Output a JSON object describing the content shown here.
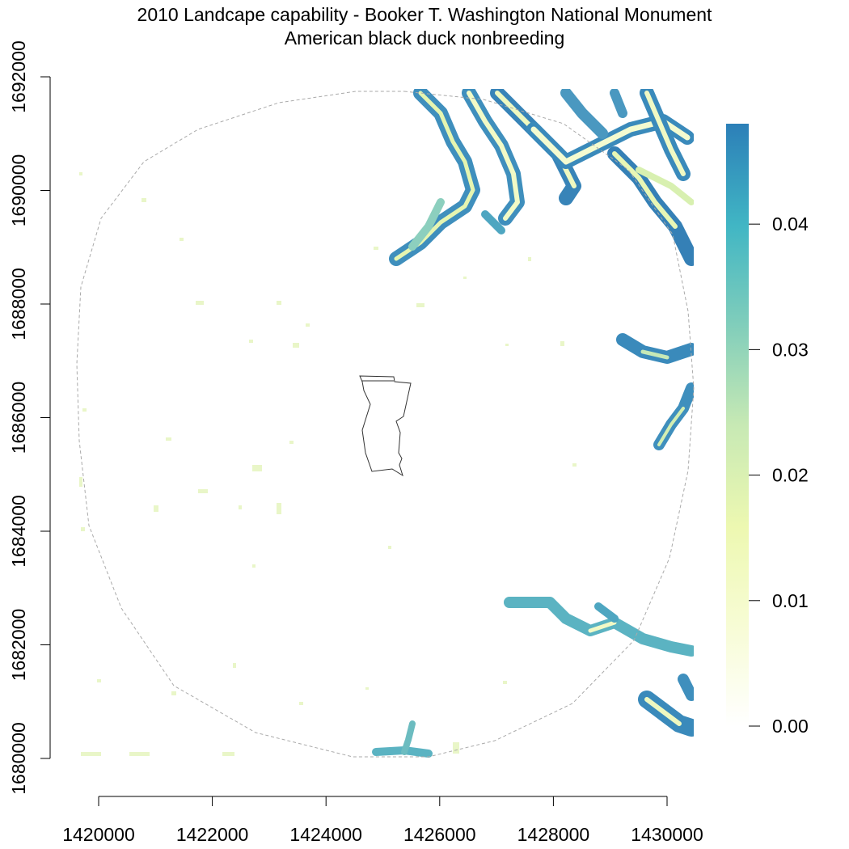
{
  "figure": {
    "title_line1": "2010 Landcape capability - Booker T. Washington National Monument",
    "title_line2": "American black duck nonbreeding"
  },
  "map": {
    "x_ticks": [
      "1420000",
      "1422000",
      "1424000",
      "1426000",
      "1428000",
      "1430000"
    ],
    "y_ticks": [
      "1680000",
      "1682000",
      "1684000",
      "1686000",
      "1688000",
      "1690000",
      "1692000"
    ],
    "buffer_outline_color": "#aaaaaa",
    "park_boundary_color": "#333333"
  },
  "legend": {
    "ticks": [
      "0.00",
      "0.01",
      "0.02",
      "0.03",
      "0.04"
    ],
    "gradient_colors": [
      "#ffffff",
      "#f7fcd4",
      "#edf8b1",
      "#c7e9b4",
      "#7fcdbb",
      "#41b6c4",
      "#2c7fb8"
    ],
    "max_value": 0.048
  }
}
